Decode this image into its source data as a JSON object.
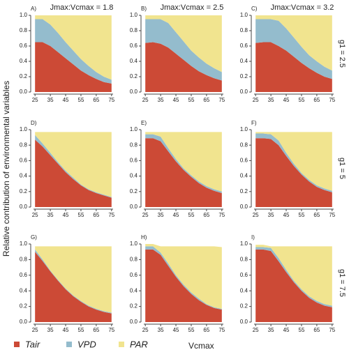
{
  "ylabel": "Relative contribution of environmental variables",
  "xlabel": "Vcmax",
  "chart_data": [
    {
      "type": "area",
      "panel": "A)",
      "title": "Jmax:Vcmax = 1.8",
      "x": [
        25,
        30,
        35,
        40,
        45,
        50,
        55,
        60,
        65,
        70,
        75
      ],
      "xlim": [
        24,
        76
      ],
      "xticks": [
        25,
        35,
        45,
        55,
        65,
        75
      ],
      "ylim": [
        0,
        1
      ],
      "yticks": [
        {
          "value": 0,
          "label": "0.0"
        },
        0.2,
        0.4,
        0.6,
        0.8,
        {
          "value": 1,
          "label": "1.0"
        }
      ],
      "series": [
        {
          "name": "Tair",
          "color": "#cc4a36",
          "values": [
            0.65,
            0.65,
            0.6,
            0.52,
            0.44,
            0.36,
            0.28,
            0.22,
            0.17,
            0.13,
            0.11
          ]
        },
        {
          "name": "VPD",
          "color": "#94bccd",
          "values": [
            0.3,
            0.3,
            0.28,
            0.25,
            0.21,
            0.18,
            0.15,
            0.12,
            0.09,
            0.07,
            0.05
          ]
        },
        {
          "name": "PAR",
          "color": "#f1e48f",
          "values": [
            0.05,
            0.05,
            0.12,
            0.23,
            0.35,
            0.46,
            0.57,
            0.66,
            0.74,
            0.8,
            0.84
          ]
        }
      ]
    },
    {
      "type": "area",
      "panel": "B)",
      "title": "Jmax:Vcmax = 2.5",
      "x": [
        25,
        30,
        35,
        40,
        45,
        50,
        55,
        60,
        65,
        70,
        75
      ],
      "xlim": [
        24,
        76
      ],
      "xticks": [
        25,
        35,
        45,
        55,
        65,
        75
      ],
      "ylim": [
        0,
        1
      ],
      "yticks": [
        {
          "value": 0,
          "label": "0.0"
        },
        0.2,
        0.4,
        0.6,
        0.8,
        {
          "value": 1,
          "label": "1.0"
        }
      ],
      "series": [
        {
          "name": "Tair",
          "color": "#cc4a36",
          "values": [
            0.64,
            0.65,
            0.63,
            0.58,
            0.5,
            0.42,
            0.34,
            0.27,
            0.22,
            0.18,
            0.15
          ]
        },
        {
          "name": "VPD",
          "color": "#94bccd",
          "values": [
            0.31,
            0.3,
            0.32,
            0.32,
            0.28,
            0.24,
            0.2,
            0.18,
            0.15,
            0.13,
            0.11
          ]
        },
        {
          "name": "PAR",
          "color": "#f1e48f",
          "values": [
            0.05,
            0.05,
            0.05,
            0.1,
            0.22,
            0.34,
            0.46,
            0.55,
            0.63,
            0.69,
            0.74
          ]
        }
      ]
    },
    {
      "type": "area",
      "panel": "C)",
      "title": "Jmax:Vcmax = 3.2",
      "side_label": "g1 = 2.5",
      "x": [
        25,
        30,
        35,
        40,
        45,
        50,
        55,
        60,
        65,
        70,
        75
      ],
      "xlim": [
        24,
        76
      ],
      "xticks": [
        25,
        35,
        45,
        55,
        65,
        75
      ],
      "ylim": [
        0,
        1
      ],
      "yticks": [
        {
          "value": 0,
          "label": "0.0"
        },
        0.2,
        0.4,
        0.6,
        0.8,
        {
          "value": 1,
          "label": "1.0"
        }
      ],
      "series": [
        {
          "name": "Tair",
          "color": "#cc4a36",
          "values": [
            0.64,
            0.65,
            0.65,
            0.6,
            0.54,
            0.46,
            0.38,
            0.31,
            0.25,
            0.2,
            0.17
          ]
        },
        {
          "name": "VPD",
          "color": "#94bccd",
          "values": [
            0.31,
            0.3,
            0.3,
            0.33,
            0.29,
            0.25,
            0.21,
            0.17,
            0.15,
            0.13,
            0.11
          ]
        },
        {
          "name": "PAR",
          "color": "#f1e48f",
          "values": [
            0.05,
            0.05,
            0.05,
            0.07,
            0.17,
            0.29,
            0.41,
            0.52,
            0.6,
            0.67,
            0.72
          ]
        }
      ]
    },
    {
      "type": "area",
      "panel": "D)",
      "x": [
        25,
        30,
        35,
        40,
        45,
        50,
        55,
        60,
        65,
        70,
        75
      ],
      "xlim": [
        24,
        76
      ],
      "xticks": [
        25,
        35,
        45,
        55,
        65,
        75
      ],
      "ylim": [
        0,
        1
      ],
      "yticks": [
        {
          "value": 0,
          "label": "0.0"
        },
        0.2,
        0.4,
        0.6,
        0.8,
        {
          "value": 1,
          "label": "1.0"
        }
      ],
      "series": [
        {
          "name": "Tair",
          "color": "#cc4a36",
          "values": [
            0.87,
            0.78,
            0.67,
            0.56,
            0.45,
            0.36,
            0.28,
            0.22,
            0.18,
            0.15,
            0.12
          ]
        },
        {
          "name": "VPD",
          "color": "#94bccd",
          "values": [
            0.06,
            0.04,
            0.03,
            0.02,
            0.02,
            0.02,
            0.01,
            0.01,
            0.01,
            0.01,
            0.01
          ]
        },
        {
          "name": "PAR",
          "color": "#f1e48f",
          "values": [
            0.04,
            0.15,
            0.27,
            0.39,
            0.5,
            0.59,
            0.68,
            0.74,
            0.78,
            0.81,
            0.84
          ]
        }
      ]
    },
    {
      "type": "area",
      "panel": "E)",
      "x": [
        25,
        30,
        35,
        40,
        45,
        50,
        55,
        60,
        65,
        70,
        75
      ],
      "xlim": [
        24,
        76
      ],
      "xticks": [
        25,
        35,
        45,
        55,
        65,
        75
      ],
      "ylim": [
        0,
        1
      ],
      "yticks": [
        {
          "value": 0,
          "label": "0.0"
        },
        0.2,
        0.4,
        0.6,
        0.8,
        {
          "value": 1,
          "label": "1.0"
        }
      ],
      "series": [
        {
          "name": "Tair",
          "color": "#cc4a36",
          "values": [
            0.89,
            0.89,
            0.85,
            0.72,
            0.59,
            0.48,
            0.39,
            0.31,
            0.25,
            0.21,
            0.18
          ]
        },
        {
          "name": "VPD",
          "color": "#94bccd",
          "values": [
            0.05,
            0.05,
            0.06,
            0.04,
            0.03,
            0.02,
            0.02,
            0.02,
            0.02,
            0.02,
            0.02
          ]
        },
        {
          "name": "PAR",
          "color": "#f1e48f",
          "values": [
            0.03,
            0.03,
            0.06,
            0.21,
            0.35,
            0.47,
            0.56,
            0.64,
            0.7,
            0.74,
            0.77
          ]
        }
      ]
    },
    {
      "type": "area",
      "panel": "F)",
      "side_label": "g1 = 5",
      "x": [
        25,
        30,
        35,
        40,
        45,
        50,
        55,
        60,
        65,
        70,
        75
      ],
      "xlim": [
        24,
        76
      ],
      "xticks": [
        25,
        35,
        45,
        55,
        65,
        75
      ],
      "ylim": [
        0,
        1
      ],
      "yticks": [
        {
          "value": 0,
          "label": "0.0"
        },
        0.2,
        0.4,
        0.6,
        0.8,
        {
          "value": 1,
          "label": "1.0"
        }
      ],
      "series": [
        {
          "name": "Tair",
          "color": "#cc4a36",
          "values": [
            0.89,
            0.89,
            0.88,
            0.8,
            0.66,
            0.53,
            0.42,
            0.33,
            0.26,
            0.22,
            0.19
          ]
        },
        {
          "name": "VPD",
          "color": "#94bccd",
          "values": [
            0.06,
            0.06,
            0.06,
            0.06,
            0.04,
            0.03,
            0.02,
            0.02,
            0.02,
            0.02,
            0.02
          ]
        },
        {
          "name": "PAR",
          "color": "#f1e48f",
          "values": [
            0.02,
            0.02,
            0.03,
            0.11,
            0.27,
            0.41,
            0.53,
            0.62,
            0.69,
            0.73,
            0.76
          ]
        }
      ]
    },
    {
      "type": "area",
      "panel": "G)",
      "x": [
        25,
        30,
        35,
        40,
        45,
        50,
        55,
        60,
        65,
        70,
        75
      ],
      "xlim": [
        24,
        76
      ],
      "xticks": [
        25,
        35,
        45,
        55,
        65,
        75
      ],
      "ylim": [
        0,
        1
      ],
      "yticks": [
        {
          "value": 0,
          "label": "0.0"
        },
        0.2,
        0.4,
        0.6,
        0.8,
        {
          "value": 1,
          "label": "1.0"
        }
      ],
      "series": [
        {
          "name": "Tair",
          "color": "#cc4a36",
          "values": [
            0.9,
            0.78,
            0.65,
            0.53,
            0.42,
            0.33,
            0.26,
            0.2,
            0.16,
            0.13,
            0.11
          ]
        },
        {
          "name": "VPD",
          "color": "#94bccd",
          "values": [
            0.03,
            0.02,
            0.01,
            0.01,
            0.01,
            0.01,
            0.01,
            0.01,
            0.01,
            0.01,
            0.01
          ]
        },
        {
          "name": "PAR",
          "color": "#f1e48f",
          "values": [
            0.04,
            0.17,
            0.31,
            0.43,
            0.54,
            0.63,
            0.7,
            0.76,
            0.8,
            0.83,
            0.85
          ]
        }
      ]
    },
    {
      "type": "area",
      "panel": "H)",
      "x": [
        25,
        30,
        35,
        40,
        45,
        50,
        55,
        60,
        65,
        70,
        75
      ],
      "xlim": [
        24,
        76
      ],
      "xticks": [
        25,
        35,
        45,
        55,
        65,
        75
      ],
      "ylim": [
        0,
        1
      ],
      "yticks": [
        {
          "value": 0,
          "label": "0.0"
        },
        0.2,
        0.4,
        0.6,
        0.8,
        {
          "value": 1,
          "label": "1.0"
        }
      ],
      "series": [
        {
          "name": "Tair",
          "color": "#cc4a36",
          "values": [
            0.93,
            0.93,
            0.86,
            0.72,
            0.58,
            0.46,
            0.36,
            0.28,
            0.22,
            0.18,
            0.16
          ]
        },
        {
          "name": "VPD",
          "color": "#94bccd",
          "values": [
            0.04,
            0.04,
            0.03,
            0.03,
            0.02,
            0.02,
            0.02,
            0.02,
            0.01,
            0.01,
            0.01
          ]
        },
        {
          "name": "PAR",
          "color": "#f1e48f",
          "values": [
            0.03,
            0.03,
            0.08,
            0.22,
            0.37,
            0.49,
            0.59,
            0.67,
            0.74,
            0.78,
            0.79
          ]
        }
      ]
    },
    {
      "type": "area",
      "panel": "I)",
      "side_label": "g1 = 7.5",
      "x": [
        25,
        30,
        35,
        40,
        45,
        50,
        55,
        60,
        65,
        70,
        75
      ],
      "xlim": [
        24,
        76
      ],
      "xticks": [
        25,
        35,
        45,
        55,
        65,
        75
      ],
      "ylim": [
        0,
        1
      ],
      "yticks": [
        {
          "value": 0,
          "label": "0.0"
        },
        0.2,
        0.4,
        0.6,
        0.8,
        {
          "value": 1,
          "label": "1.0"
        }
      ],
      "series": [
        {
          "name": "Tair",
          "color": "#cc4a36",
          "values": [
            0.93,
            0.93,
            0.91,
            0.78,
            0.64,
            0.51,
            0.4,
            0.31,
            0.25,
            0.21,
            0.19
          ]
        },
        {
          "name": "VPD",
          "color": "#94bccd",
          "values": [
            0.03,
            0.03,
            0.04,
            0.04,
            0.03,
            0.02,
            0.02,
            0.02,
            0.02,
            0.02,
            0.02
          ]
        },
        {
          "name": "PAR",
          "color": "#f1e48f",
          "values": [
            0.03,
            0.03,
            0.02,
            0.15,
            0.3,
            0.44,
            0.55,
            0.64,
            0.7,
            0.74,
            0.76
          ]
        }
      ]
    }
  ]
}
